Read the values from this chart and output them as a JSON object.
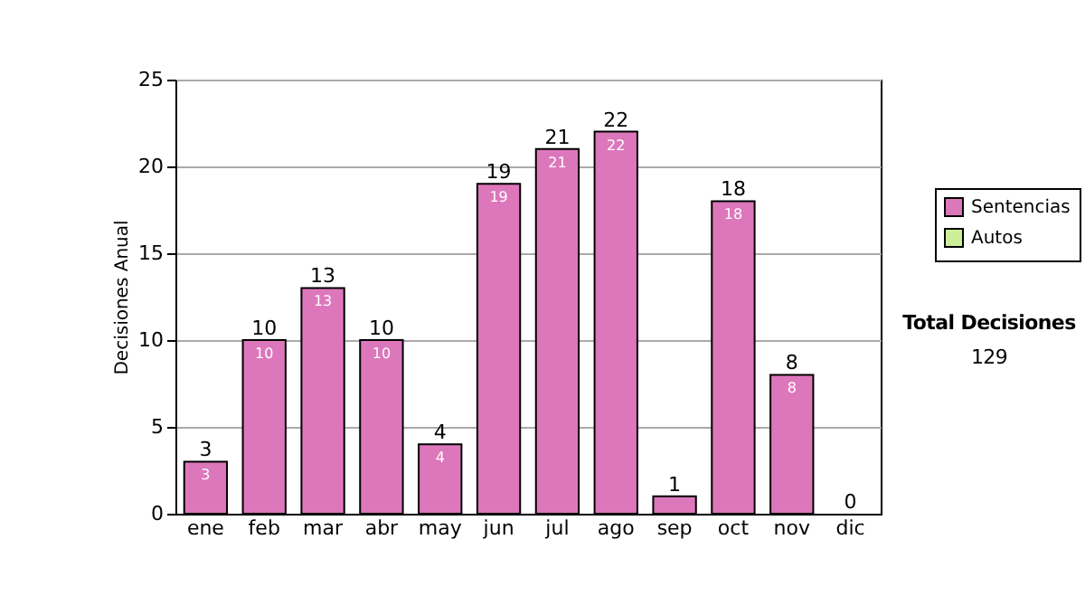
{
  "chart_data": {
    "type": "bar",
    "ylabel": "Decisiones Anual",
    "categories": [
      "ene",
      "feb",
      "mar",
      "abr",
      "may",
      "jun",
      "jul",
      "ago",
      "sep",
      "oct",
      "nov",
      "dic"
    ],
    "series": [
      {
        "name": "Sentencias",
        "color": "#dd77bb",
        "values": [
          3,
          10,
          13,
          10,
          4,
          19,
          21,
          22,
          1,
          18,
          8,
          0
        ],
        "value_labels": [
          "3",
          "10",
          "13",
          "10",
          "4",
          "19",
          "21",
          "22",
          null,
          "18",
          "8",
          null
        ]
      },
      {
        "name": "Autos",
        "color": "#ccee99",
        "values": [
          0,
          0,
          0,
          0,
          0,
          0,
          0,
          0,
          0,
          0,
          0,
          0
        ]
      }
    ],
    "stacked": true,
    "totals": [
      "3",
      "10",
      "13",
      "10",
      "4",
      "19",
      "21",
      "22",
      "1",
      "18",
      "8",
      "0"
    ],
    "ylim": [
      0,
      25
    ],
    "yticks": [
      0,
      5,
      10,
      15,
      20,
      25
    ],
    "grid": "y",
    "legend": "right",
    "annotations": [
      "Total Decisiones",
      "129"
    ]
  }
}
